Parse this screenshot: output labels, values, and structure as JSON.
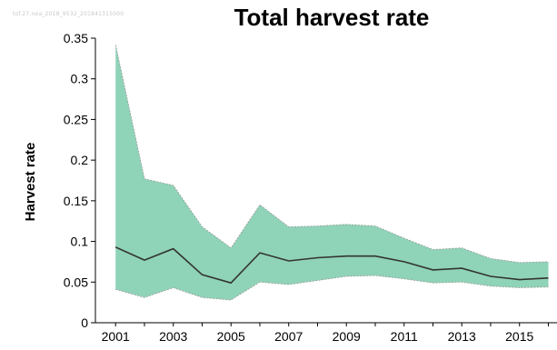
{
  "watermark": "tof.27.nea_2018_9532_201841315000",
  "chart_data": {
    "type": "area",
    "title": "Total harvest rate",
    "xlabel": "",
    "ylabel": "Harvest rate",
    "xlim": [
      2000.3,
      2016.3
    ],
    "ylim": [
      0,
      0.35
    ],
    "xticks": [
      "2001",
      "2003",
      "2005",
      "2007",
      "2009",
      "2011",
      "2013",
      "2015"
    ],
    "yticks": [
      "0",
      "0.05",
      "0.1",
      "0.15",
      "0.2",
      "0.25",
      "0.3",
      "0.35"
    ],
    "grid": false,
    "x": [
      2001,
      2002,
      2003,
      2004,
      2005,
      2006,
      2007,
      2008,
      2009,
      2010,
      2011,
      2012,
      2013,
      2014,
      2015,
      2016
    ],
    "series": [
      {
        "role": "band_upper",
        "values": [
          0.342,
          0.177,
          0.169,
          0.118,
          0.092,
          0.145,
          0.118,
          0.119,
          0.121,
          0.119,
          0.104,
          0.09,
          0.092,
          0.079,
          0.074,
          0.075
        ]
      },
      {
        "role": "median",
        "values": [
          0.093,
          0.077,
          0.091,
          0.059,
          0.049,
          0.086,
          0.076,
          0.08,
          0.082,
          0.082,
          0.075,
          0.065,
          0.067,
          0.057,
          0.053,
          0.055
        ]
      },
      {
        "role": "band_lower",
        "values": [
          0.041,
          0.031,
          0.043,
          0.031,
          0.028,
          0.05,
          0.047,
          0.052,
          0.057,
          0.058,
          0.054,
          0.049,
          0.05,
          0.045,
          0.043,
          0.044
        ]
      }
    ],
    "colors": {
      "band": "#8fd3b8",
      "band_edge": "#9a9a9a",
      "line": "#333333",
      "axis": "#000000"
    }
  }
}
